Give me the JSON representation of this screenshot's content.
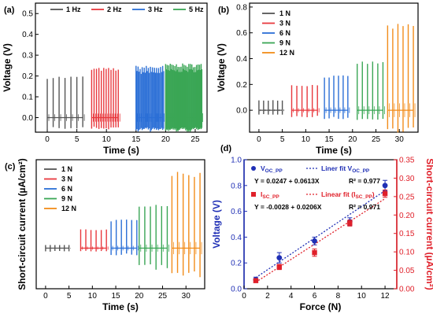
{
  "chart_data": [
    {
      "panel": "(a)",
      "type": "line",
      "xlabel": "Time (s)",
      "ylabel": "Voltage (V)",
      "xlim": [
        -2,
        27
      ],
      "ylim": [
        -0.07,
        0.55
      ],
      "xticks": [
        0,
        5,
        10,
        15,
        20,
        25
      ],
      "yticks": [
        0.0,
        0.1,
        0.2,
        0.3,
        0.4,
        0.5
      ],
      "ytick_labels": [
        "0.0",
        "0.1",
        "0.2",
        "0.3",
        "0.4",
        "0.5"
      ],
      "legend_position": "top",
      "series": [
        {
          "name": "1 Hz",
          "color": "#555555",
          "x_start": 0.0,
          "x_end": 6.0,
          "pulses": 7,
          "peak": 0.2,
          "trough": -0.05,
          "dense": false
        },
        {
          "name": "2 Hz",
          "color": "#e8383d",
          "x_start": 7.5,
          "x_end": 12.0,
          "pulses": 12,
          "peak": 0.24,
          "trough": -0.05,
          "dense": false
        },
        {
          "name": "3 Hz",
          "color": "#2b6fd6",
          "x_start": 15.0,
          "x_end": 19.5,
          "pulses": 14,
          "peak": 0.25,
          "trough": -0.06,
          "dense": true
        },
        {
          "name": "5 Hz",
          "color": "#3aa655",
          "x_start": 20.0,
          "x_end": 26.0,
          "pulses": 24,
          "peak": 0.26,
          "trough": -0.06,
          "dense": true
        }
      ]
    },
    {
      "panel": "(b)",
      "type": "line",
      "xlabel": "Time (s)",
      "ylabel": "Voltage (V)",
      "xlim": [
        -2,
        34
      ],
      "ylim": [
        -0.17,
        0.83
      ],
      "xticks": [
        0,
        5,
        10,
        15,
        20,
        25,
        30
      ],
      "yticks": [
        0.0,
        0.2,
        0.4,
        0.6,
        0.8
      ],
      "ytick_labels": [
        "0.0",
        "0.2",
        "0.4",
        "0.6",
        "0.8"
      ],
      "legend_position": "top-left",
      "series": [
        {
          "name": "1 N",
          "color": "#555555",
          "x_start": 0.0,
          "x_end": 5.0,
          "pulses": 6,
          "peak": 0.08,
          "trough": -0.03,
          "dense": false
        },
        {
          "name": "3 N",
          "color": "#e8383d",
          "x_start": 7.0,
          "x_end": 12.5,
          "pulses": 6,
          "peak": 0.2,
          "trough": -0.05,
          "dense": false
        },
        {
          "name": "6 N",
          "color": "#2b6fd6",
          "x_start": 14.0,
          "x_end": 19.0,
          "pulses": 6,
          "peak": 0.27,
          "trough": -0.06,
          "dense": false
        },
        {
          "name": "9 N",
          "color": "#3aa655",
          "x_start": 21.0,
          "x_end": 26.5,
          "pulses": 6,
          "peak": 0.38,
          "trough": -0.07,
          "dense": false
        },
        {
          "name": "12 N",
          "color": "#f28c1a",
          "x_start": 27.5,
          "x_end": 33.0,
          "pulses": 6,
          "peak": 0.67,
          "trough": -0.15,
          "dense": false
        }
      ]
    },
    {
      "panel": "(c)",
      "type": "line",
      "xlabel": "Time (s)",
      "ylabel": "Short-circuit current (µA/cm²)",
      "xlim": [
        -2,
        34
      ],
      "ylim": [
        null,
        null
      ],
      "xticks": [
        0,
        5,
        10,
        15,
        20,
        25,
        30
      ],
      "yticks": [],
      "ytick_labels": [],
      "legend_position": "top-left",
      "series": [
        {
          "name": "1 N",
          "color": "#555555",
          "x_start": 0.0,
          "x_end": 5.0,
          "pulses": 6,
          "peak": 0.01,
          "trough": -0.01,
          "dense": false
        },
        {
          "name": "3 N",
          "color": "#e8383d",
          "x_start": 7.5,
          "x_end": 13.0,
          "pulses": 6,
          "peak": 0.06,
          "trough": -0.01,
          "dense": false
        },
        {
          "name": "6 N",
          "color": "#2b6fd6",
          "x_start": 14.0,
          "x_end": 19.5,
          "pulses": 6,
          "peak": 0.09,
          "trough": -0.02,
          "dense": false
        },
        {
          "name": "9 N",
          "color": "#3aa655",
          "x_start": 20.0,
          "x_end": 26.0,
          "pulses": 6,
          "peak": 0.14,
          "trough": -0.06,
          "dense": false
        },
        {
          "name": "12 N",
          "color": "#f28c1a",
          "x_start": 27.0,
          "x_end": 33.0,
          "pulses": 6,
          "peak": 0.24,
          "trough": -0.08,
          "dense": false
        }
      ]
    },
    {
      "panel": "(d)",
      "type": "scatter",
      "xlabel": "Force (N)",
      "ylabel": "Voltage (V)",
      "y2label": "Short-circuit current (µA/cm²)",
      "xlim": [
        0,
        13
      ],
      "ylim": [
        0.0,
        1.0
      ],
      "y2lim": [
        0.0,
        0.35
      ],
      "xticks": [
        0,
        2,
        4,
        6,
        8,
        10,
        12
      ],
      "yticks": [
        0.0,
        0.2,
        0.4,
        0.6,
        0.8,
        1.0
      ],
      "ytick_labels": [
        "0.0",
        "0.2",
        "0.4",
        "0.6",
        "0.8",
        "1.0"
      ],
      "y2ticks": [
        0.0,
        0.05,
        0.1,
        0.15,
        0.2,
        0.25,
        0.3,
        0.35
      ],
      "y2tick_labels": [
        "0.00",
        "0.05",
        "0.10",
        "0.15",
        "0.20",
        "0.25",
        "0.30",
        "0.35"
      ],
      "legend_position": "top-left",
      "series": [
        {
          "name": "V",
          "sub": "OC_PP",
          "axis": "left",
          "marker": "circle",
          "color": "#1f2fb5",
          "x": [
            1,
            3,
            6,
            9,
            12
          ],
          "y": [
            0.07,
            0.24,
            0.37,
            0.52,
            0.8
          ],
          "err": [
            0.02,
            0.04,
            0.03,
            0.03,
            0.04
          ]
        },
        {
          "name": "I",
          "sub": "SC_PP",
          "axis": "right",
          "marker": "square",
          "color": "#e0202a",
          "x": [
            1,
            3,
            6,
            9,
            12
          ],
          "y": [
            0.022,
            0.059,
            0.098,
            0.178,
            0.258
          ],
          "err": [
            0.005,
            0.007,
            0.01,
            0.008,
            0.01
          ]
        }
      ],
      "fits": [
        {
          "label": "Liner fit V",
          "sub": "OC_PP",
          "color": "#1f2fb5",
          "axis": "left",
          "intercept": 0.0247,
          "slope": 0.0613,
          "equation": "Y = 0.0247 + 0.0613X",
          "r2": "R² = 0.977"
        },
        {
          "label": "Linear fit (I",
          "sub": "SC_PP",
          "label_tail": ")",
          "color": "#e0202a",
          "axis": "right",
          "intercept": -0.0028,
          "slope": 0.0206,
          "equation": "Y = -0.0028 + 0.0206X",
          "r2": "R² = 0.971"
        }
      ]
    }
  ]
}
